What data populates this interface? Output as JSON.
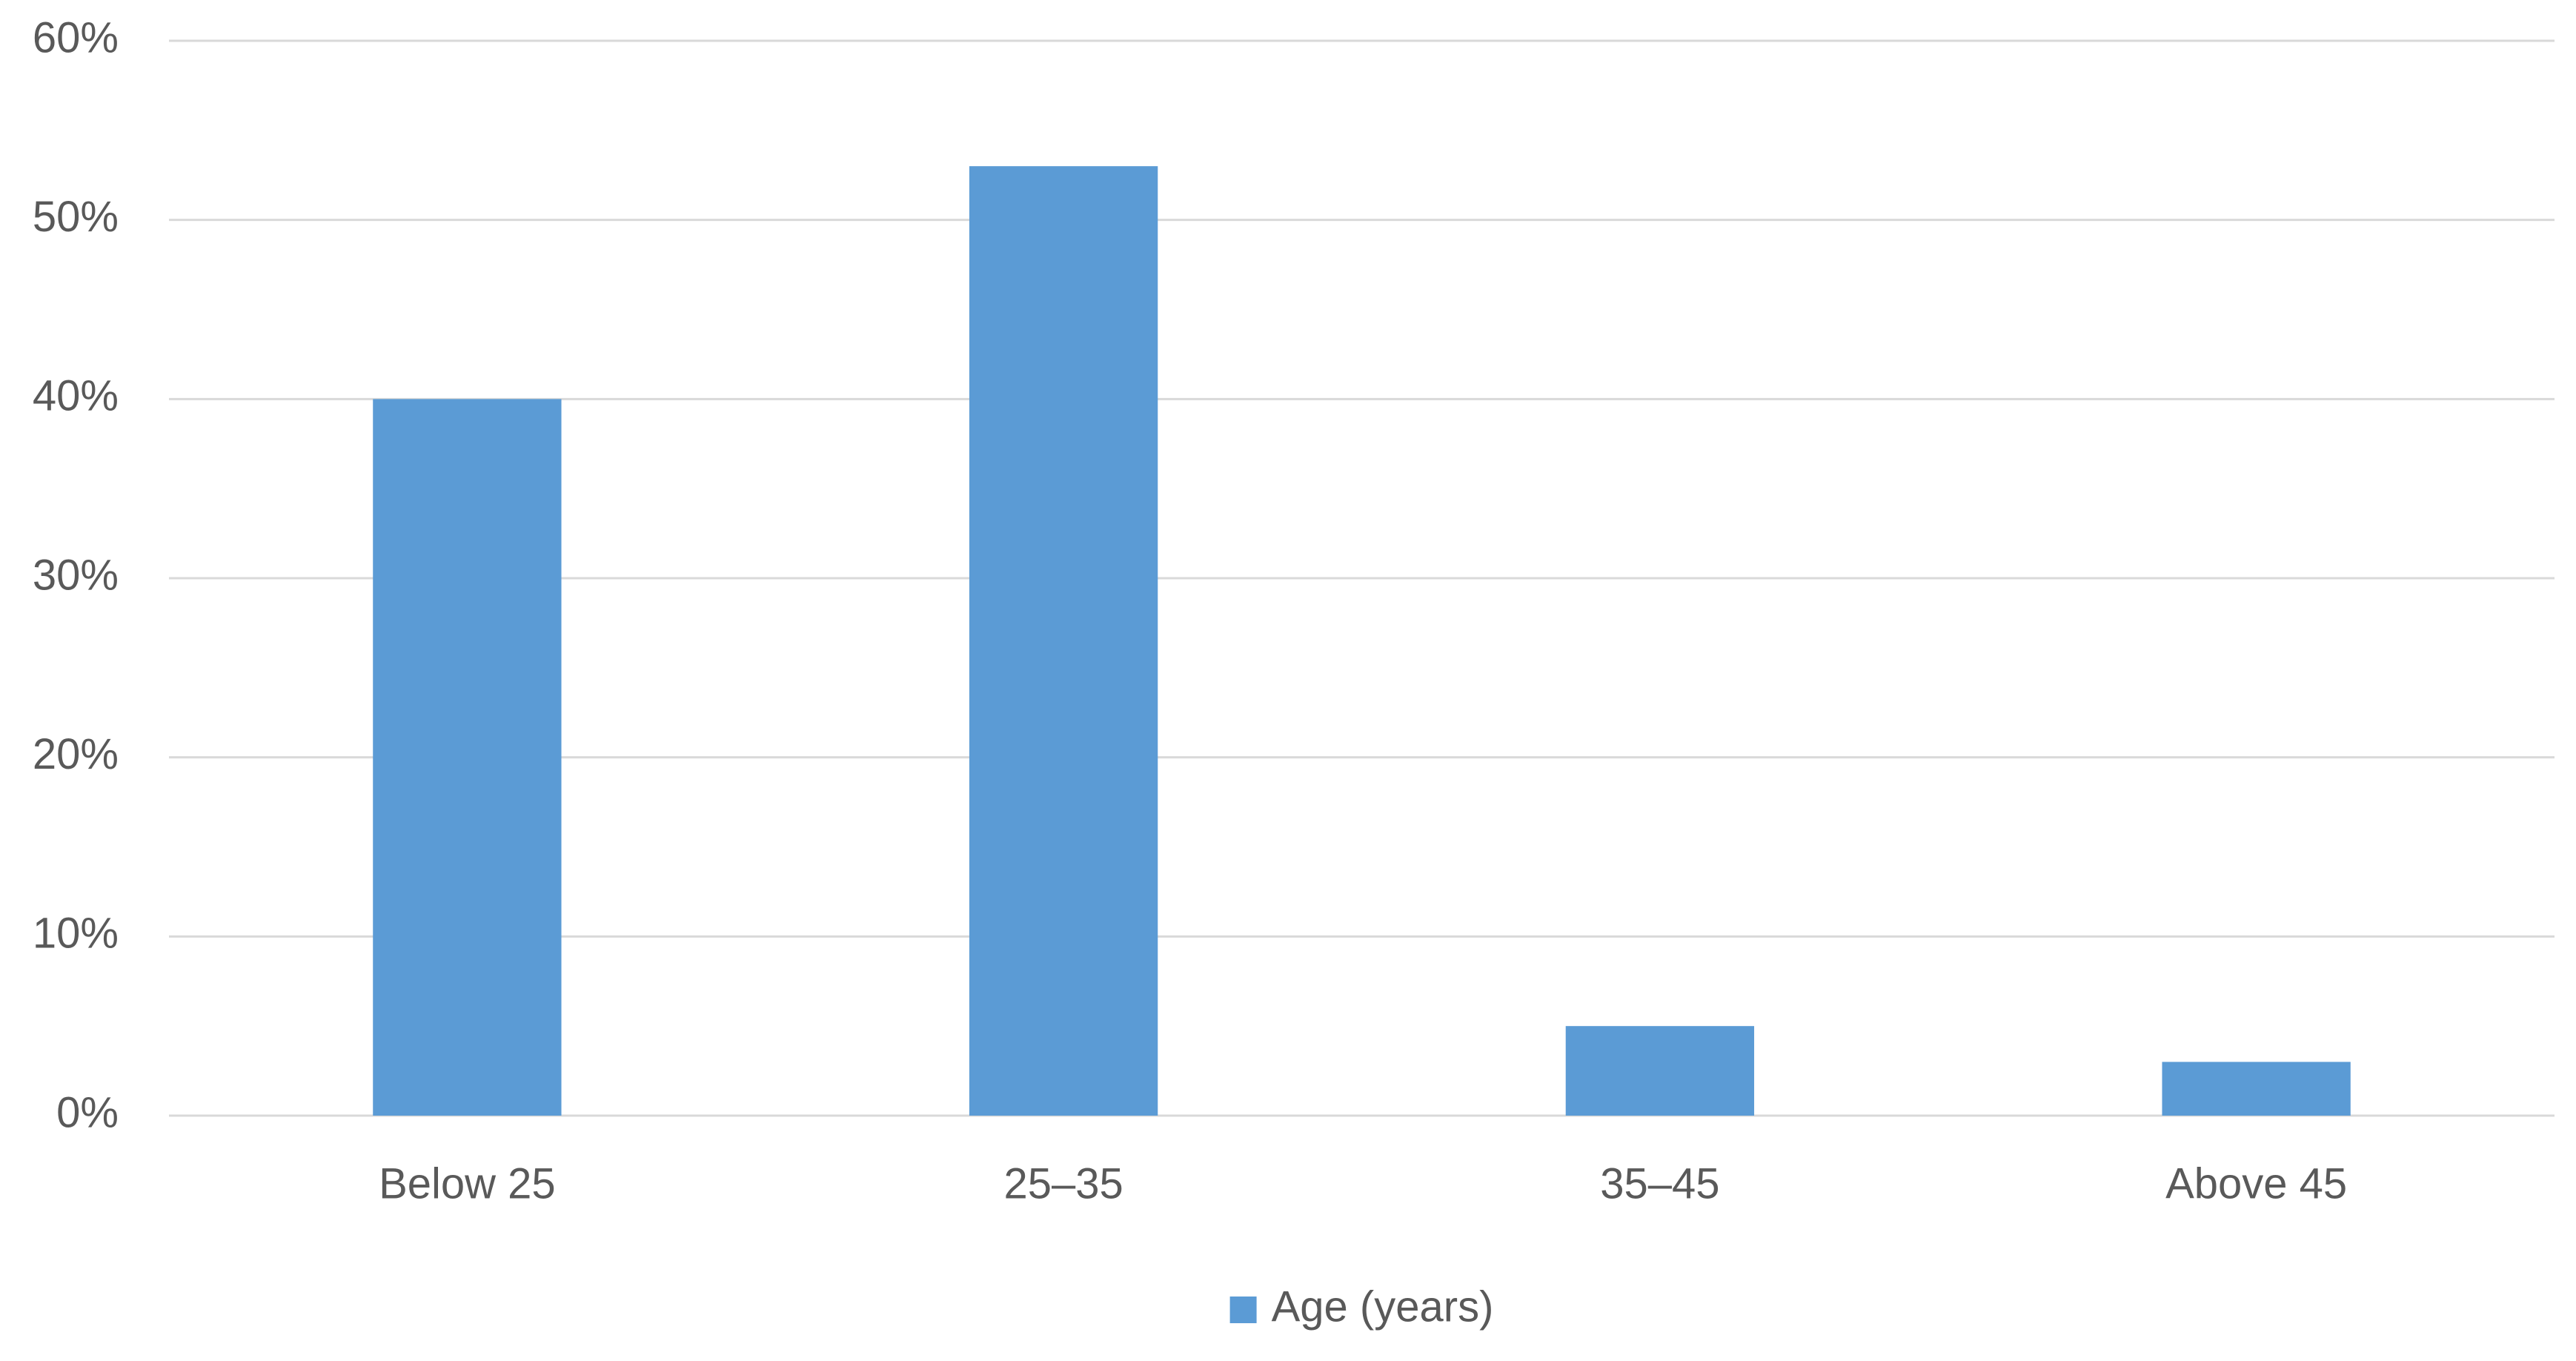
{
  "chart_data": {
    "type": "bar",
    "categories": [
      "Below 25",
      "25–35",
      "35–45",
      "Above 45"
    ],
    "series": [
      {
        "name": "Age (years)",
        "color": "#5b9bd5",
        "values": [
          40,
          53,
          5,
          3
        ]
      }
    ],
    "ylim": [
      0,
      60
    ],
    "yticks": [
      {
        "value": 0,
        "label": "0%"
      },
      {
        "value": 10,
        "label": "10%"
      },
      {
        "value": 20,
        "label": "20%"
      },
      {
        "value": 30,
        "label": "30%"
      },
      {
        "value": 40,
        "label": "40%"
      },
      {
        "value": 50,
        "label": "50%"
      },
      {
        "value": 60,
        "label": "60%"
      }
    ],
    "grid": true,
    "legend": "bottom"
  }
}
